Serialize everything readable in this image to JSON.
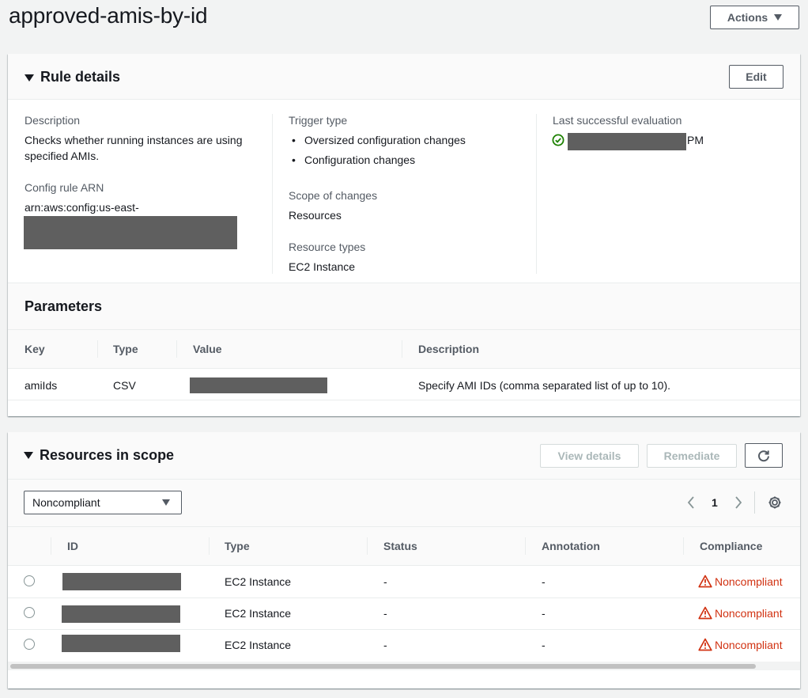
{
  "page": {
    "title": "approved-amis-by-id",
    "actions_label": "Actions"
  },
  "rule_details": {
    "heading": "Rule details",
    "edit_label": "Edit",
    "description_label": "Description",
    "description_value_line1": "Checks whether running instances are using",
    "description_value_line2": "specified AMIs.",
    "arn_label": "Config rule ARN",
    "arn_value": "arn:aws:config:us-east-",
    "trigger_type_label": "Trigger type",
    "trigger_types": [
      "Oversized configuration changes",
      "Configuration changes"
    ],
    "scope_label": "Scope of changes",
    "scope_value": "Resources",
    "resource_types_label": "Resource types",
    "resource_types_value": "EC2 Instance",
    "last_eval_label": "Last successful evaluation",
    "last_eval_suffix": "PM",
    "status_color": "#1d8102"
  },
  "parameters": {
    "heading": "Parameters",
    "columns": [
      "Key",
      "Type",
      "Value",
      "Description"
    ],
    "rows": [
      {
        "key": "amiIds",
        "type": "CSV",
        "description": "Specify AMI IDs (comma separated list of up to 10)."
      }
    ]
  },
  "resources": {
    "heading": "Resources in scope",
    "view_details_label": "View details",
    "remediate_label": "Remediate",
    "filter_value": "Noncompliant",
    "page_number": "1",
    "columns": [
      "ID",
      "Type",
      "Status",
      "Annotation",
      "Compliance"
    ],
    "rows": [
      {
        "type": "EC2 Instance",
        "status": "-",
        "annotation": "-",
        "compliance": "Noncompliant"
      },
      {
        "type": "EC2 Instance",
        "status": "-",
        "annotation": "-",
        "compliance": "Noncompliant"
      },
      {
        "type": "EC2 Instance",
        "status": "-",
        "annotation": "-",
        "compliance": "Noncompliant"
      }
    ],
    "noncompliant_color": "#d13212"
  }
}
